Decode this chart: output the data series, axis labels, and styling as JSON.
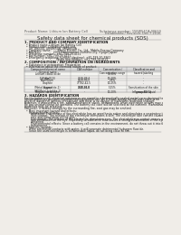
{
  "bg_color": "#f0ede8",
  "title": "Safety data sheet for chemical products (SDS)",
  "header_left": "Product Name: Lithium Ion Battery Cell",
  "header_right_line1": "Substance number: 15KW54CA-00610",
  "header_right_line2": "Established / Revision: Dec.7.2016",
  "section1_title": "1. PRODUCT AND COMPANY IDENTIFICATION",
  "section1_lines": [
    "  • Product name: Lithium Ion Battery Cell",
    "  • Product code: Cylindrical-type cell",
    "     UR 18650U, UR18650A, UR18650A",
    "  • Company name:       Sanyo Electric Co., Ltd., Mobile Energy Company",
    "  • Address:              2001 Kamionazeni, Sumoto-City, Hyogo, Japan",
    "  • Telephone number:  +81-799-20-4111",
    "  • Fax number: +81-799-24-4121",
    "  • Emergency telephone number (daytime): +81-799-20-3962",
    "                                   (Night and holiday): +81-799-24-4121"
  ],
  "section2_title": "2. COMPOSITION / INFORMATION ON INGREDIENTS",
  "section2_intro": "  • Substance or preparation: Preparation",
  "section2_sub": "  • Information about the chemical nature of product:",
  "table_col_names": [
    "Component/chemical name",
    "CAS number",
    "Concentration /\nConcentration range",
    "Classification and\nhazard labeling"
  ],
  "table_subheader": "General name",
  "table_rows": [
    [
      "Lithium cobalt oxide\n(LiMnCoO(2))",
      "-",
      "30-50%",
      "-"
    ],
    [
      "Iron",
      "7439-89-6",
      "10-20%",
      "-"
    ],
    [
      "Aluminium",
      "7429-90-5",
      "2-5%",
      "-"
    ],
    [
      "Graphite\n(Metal in graphite-1)\n(All-Mo in graphite-1)",
      "77782-42-5\n7740-44-0",
      "10-25%",
      "-"
    ],
    [
      "Copper",
      "7440-50-8",
      "5-15%",
      "Sensitization of the skin\ngroup R43.2"
    ],
    [
      "Organic electrolyte",
      "-",
      "10-20%",
      "Inflammable liquid"
    ]
  ],
  "section3_title": "3. HAZARDS IDENTIFICATION",
  "section3_para": [
    "For the battery cell, chemical substances are stored in a hermetically sealed metal case, designed to withstand",
    "temperatures by pressure-explosion during normal use. As a result, during normal use, there is no",
    "physical danger of ignition or explosion and there is no danger of hazardous materials leakage.",
    "However, if exposed to a fire, added mechanical shock, decomposed, when electrolyte activity may cause.",
    "Be gas residue cannot be operated. The battery cell case will be scorched at the extreme. Hazardous",
    "materials may be released.",
    "Moreover, if heated strongly by the surrounding fire, soot gas may be emitted."
  ],
  "section3_bullets": [
    [
      "Most important hazard and effects:",
      [
        [
          "Human health effects:",
          [
            "Inhalation: The release of the electrolyte has an anesthesia action and stimulates a respiratory tract.",
            "Skin contact: The release of the electrolyte stimulates a skin. The electrolyte skin contact causes a",
            "sore and stimulation on the skin.",
            "Eye contact: The release of the electrolyte stimulates eyes. The electrolyte eye contact causes a sore",
            "and stimulation on the eye. Especially, a substance that causes a strong inflammation of the eye is",
            "contained.",
            "Environmental effects: Since a battery cell remains in the environment, do not throw out it into the",
            "environment."
          ]
        ]
      ]
    ],
    [
      "Specific hazards:",
      [
        [
          "",
          [
            "If the electrolyte contacts with water, it will generate detrimental hydrogen fluoride.",
            "Since the used electrolyte is inflammable liquid, do not bring close to fire."
          ]
        ]
      ]
    ]
  ]
}
